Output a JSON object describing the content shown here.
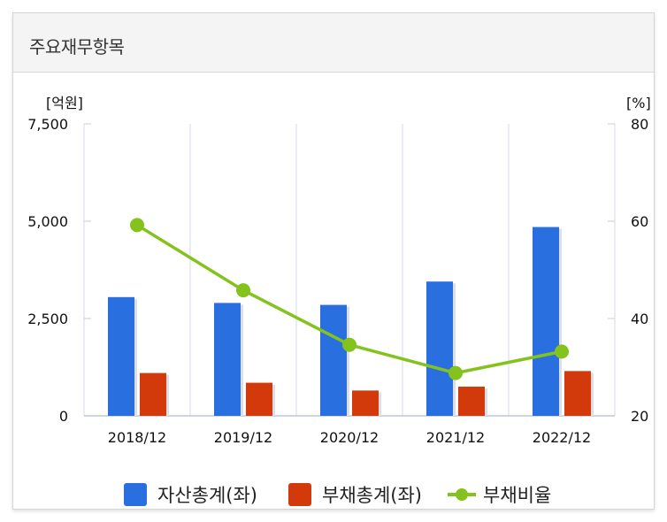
{
  "panel": {
    "title": "주요재무항목"
  },
  "chart_data": {
    "type": "bar",
    "categories": [
      "2018/12",
      "2019/12",
      "2020/12",
      "2021/12",
      "2022/12"
    ],
    "series": [
      {
        "name": "자산총계(좌)",
        "kind": "bar",
        "axis": "left",
        "color": "#2a6fe0",
        "values": [
          3050,
          2900,
          2850,
          3450,
          4850
        ]
      },
      {
        "name": "부채총계(좌)",
        "kind": "bar",
        "axis": "left",
        "color": "#d23a0c",
        "values": [
          1100,
          850,
          650,
          750,
          1150
        ]
      },
      {
        "name": "부채비율",
        "kind": "line",
        "axis": "right",
        "color": "#84c21d",
        "values": [
          59.2,
          45.8,
          34.6,
          28.8,
          33.2
        ]
      }
    ],
    "y_left": {
      "unit": "[억원]",
      "ylim": [
        0,
        7500
      ],
      "ticks": [
        0,
        2500,
        5000,
        7500
      ],
      "tick_labels": [
        "0",
        "2,500",
        "5,000",
        "7,500"
      ]
    },
    "y_right": {
      "unit": "[%]",
      "ylim": [
        20,
        80
      ],
      "ticks": [
        20,
        40,
        60,
        80
      ],
      "tick_labels": [
        "20",
        "40",
        "60",
        "80"
      ]
    },
    "grid": "vertical",
    "legend_position": "bottom"
  }
}
